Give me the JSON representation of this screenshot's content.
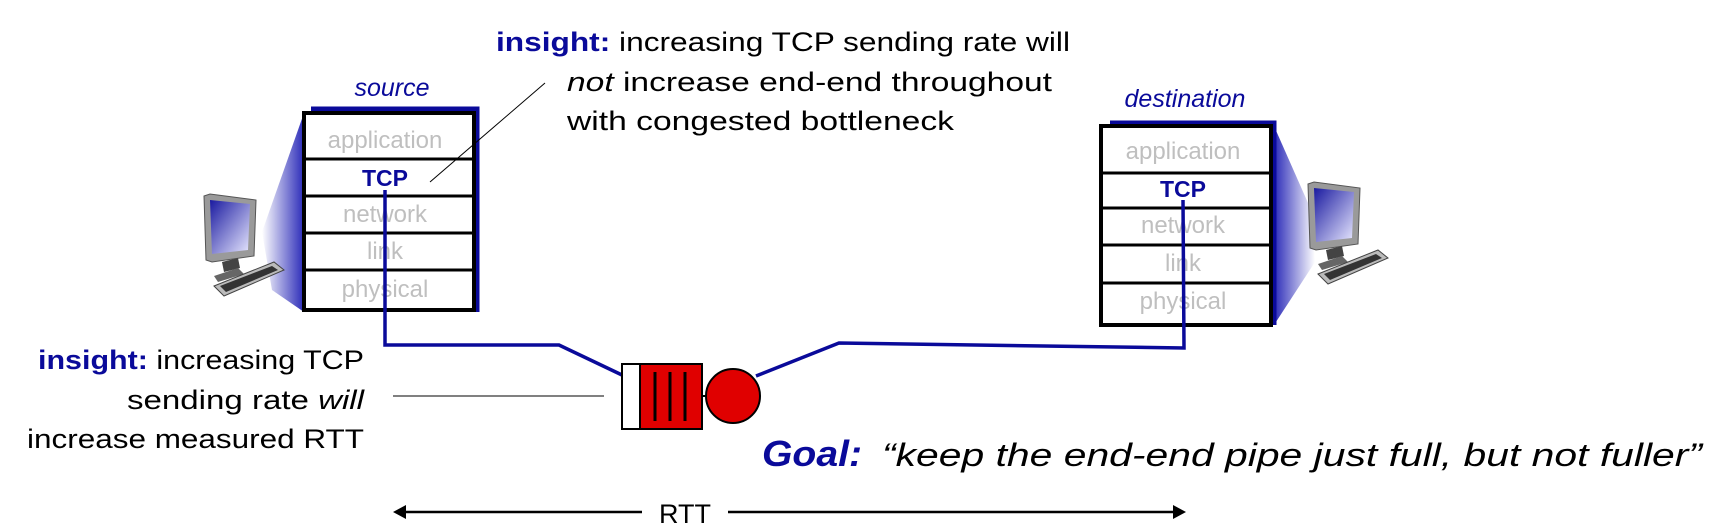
{
  "colors": {
    "accent_blue": "#0a0a9a",
    "queue_red": "#e00000",
    "layer_gray": "#bfbfbf"
  },
  "source": {
    "label": "source",
    "layers": [
      "application",
      "TCP",
      "network",
      "link",
      "physical"
    ],
    "icon": "desktop-computer-icon"
  },
  "destination": {
    "label": "destination",
    "layers": [
      "application",
      "TCP",
      "network",
      "link",
      "physical"
    ],
    "icon": "desktop-computer-icon"
  },
  "insight_top": {
    "keyword": "insight:",
    "line1": " increasing TCP sending rate will",
    "line2_italic": "not",
    "line2": " increase end-end throughout",
    "line3": "with congested bottleneck"
  },
  "insight_bottom": {
    "keyword": "insight:",
    "line1": " increasing TCP",
    "line2": "sending rate ",
    "line2_italic": "will",
    "line3": "increase measured RTT"
  },
  "goal": {
    "keyword": "Goal:",
    "quote": "“keep the end-end pipe just full, but not fuller”"
  },
  "rtt": {
    "label": "RTT"
  },
  "bottleneck": {
    "icon": "router-queue-icon"
  }
}
